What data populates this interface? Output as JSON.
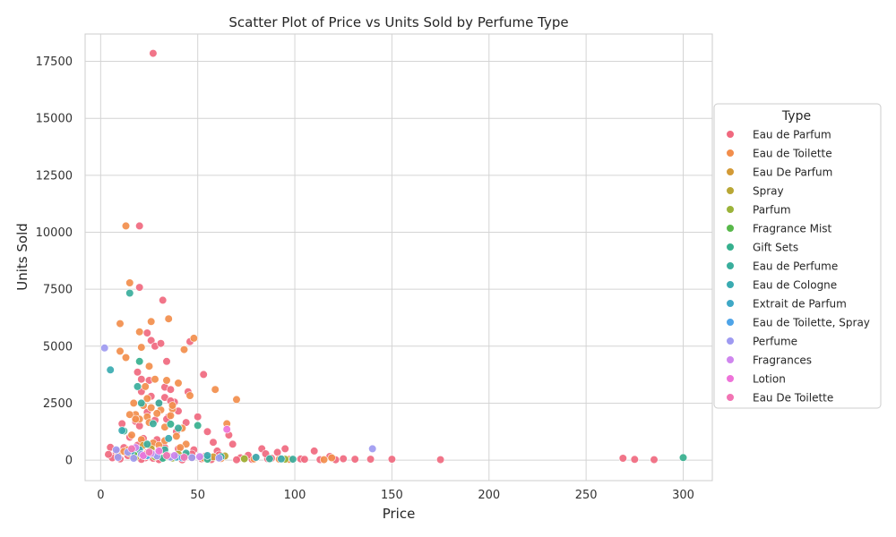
{
  "chart_data": {
    "type": "scatter",
    "title": "Scatter Plot of Price vs Units Sold by Perfume Type",
    "xlabel": "Price",
    "ylabel": "Units Sold",
    "xlim": [
      -8,
      315
    ],
    "ylim": [
      -900,
      18700
    ],
    "x_ticks": [
      0,
      50,
      100,
      150,
      200,
      250,
      300
    ],
    "y_ticks": [
      0,
      2500,
      5000,
      7500,
      10000,
      12500,
      15000,
      17500
    ],
    "grid": true,
    "legend_title": "Type",
    "legend_position": "right",
    "series": [
      {
        "name": "Eau de Parfum",
        "color": "#f0697f",
        "points": [
          [
            27,
            17850
          ],
          [
            20,
            10280
          ],
          [
            20,
            7580
          ],
          [
            32,
            7020
          ],
          [
            24,
            5580
          ],
          [
            26,
            5250
          ],
          [
            28,
            5000
          ],
          [
            31,
            5120
          ],
          [
            46,
            5200
          ],
          [
            34,
            4330
          ],
          [
            53,
            3760
          ],
          [
            19,
            3860
          ],
          [
            21,
            3550
          ],
          [
            25,
            3500
          ],
          [
            33,
            3200
          ],
          [
            36,
            3100
          ],
          [
            21,
            3010
          ],
          [
            38,
            2550
          ],
          [
            45,
            3000
          ],
          [
            26,
            2800
          ],
          [
            33,
            2750
          ],
          [
            36,
            2600
          ],
          [
            30,
            2480
          ],
          [
            40,
            2150
          ],
          [
            24,
            2100
          ],
          [
            35,
            1900
          ],
          [
            50,
            1900
          ],
          [
            18,
            1700
          ],
          [
            28,
            1750
          ],
          [
            34,
            1800
          ],
          [
            44,
            1650
          ],
          [
            11,
            1600
          ],
          [
            20,
            1500
          ],
          [
            55,
            1250
          ],
          [
            39,
            1250
          ],
          [
            15,
            1000
          ],
          [
            22,
            950
          ],
          [
            29,
            900
          ],
          [
            58,
            780
          ],
          [
            66,
            1100
          ],
          [
            68,
            700
          ],
          [
            12,
            550
          ],
          [
            19,
            650
          ],
          [
            26,
            600
          ],
          [
            33,
            550
          ],
          [
            40,
            500
          ],
          [
            48,
            450
          ],
          [
            60,
            400
          ],
          [
            83,
            500
          ],
          [
            95,
            500
          ],
          [
            110,
            400
          ],
          [
            5,
            560
          ],
          [
            8,
            300
          ],
          [
            14,
            200
          ],
          [
            17,
            150
          ],
          [
            23,
            100
          ],
          [
            27,
            80
          ],
          [
            31,
            50
          ],
          [
            37,
            120
          ],
          [
            43,
            90
          ],
          [
            52,
            60
          ],
          [
            63,
            140
          ],
          [
            72,
            100
          ],
          [
            80,
            120
          ],
          [
            88,
            80
          ],
          [
            93,
            60
          ],
          [
            103,
            50
          ],
          [
            118,
            160
          ],
          [
            125,
            60
          ],
          [
            131,
            40
          ],
          [
            139,
            40
          ],
          [
            150,
            40
          ],
          [
            175,
            20
          ],
          [
            269,
            80
          ],
          [
            275,
            30
          ],
          [
            285,
            20
          ],
          [
            6,
            100
          ],
          [
            10,
            50
          ],
          [
            21,
            30
          ],
          [
            30,
            20
          ],
          [
            42,
            10
          ],
          [
            57,
            25
          ],
          [
            70,
            15
          ],
          [
            78,
            30
          ],
          [
            86,
            60
          ],
          [
            98,
            20
          ],
          [
            105,
            35
          ],
          [
            113,
            20
          ],
          [
            121,
            15
          ],
          [
            4,
            250
          ],
          [
            9,
            380
          ],
          [
            16,
            420
          ],
          [
            24,
            330
          ],
          [
            34,
            240
          ],
          [
            47,
            270
          ],
          [
            54,
            180
          ],
          [
            61,
            230
          ],
          [
            76,
            210
          ],
          [
            85,
            280
          ],
          [
            91,
            340
          ]
        ]
      },
      {
        "name": "Eau de Toilette",
        "color": "#f28e4c",
        "points": [
          [
            13,
            10280
          ],
          [
            15,
            7780
          ],
          [
            10,
            5990
          ],
          [
            26,
            6080
          ],
          [
            35,
            6200
          ],
          [
            20,
            5630
          ],
          [
            48,
            5350
          ],
          [
            43,
            4850
          ],
          [
            10,
            4780
          ],
          [
            13,
            4500
          ],
          [
            21,
            4950
          ],
          [
            25,
            4120
          ],
          [
            28,
            3550
          ],
          [
            34,
            3500
          ],
          [
            40,
            3380
          ],
          [
            59,
            3100
          ],
          [
            70,
            2660
          ],
          [
            46,
            2830
          ],
          [
            23,
            3230
          ],
          [
            17,
            2500
          ],
          [
            22,
            2400
          ],
          [
            26,
            2300
          ],
          [
            37,
            2250
          ],
          [
            31,
            2200
          ],
          [
            18,
            2000
          ],
          [
            15,
            2000
          ],
          [
            24,
            1900
          ],
          [
            29,
            2050
          ],
          [
            36,
            1950
          ],
          [
            42,
            1400
          ],
          [
            20,
            1800
          ],
          [
            25,
            1650
          ],
          [
            33,
            1450
          ],
          [
            65,
            1600
          ],
          [
            16,
            1100
          ],
          [
            21,
            900
          ],
          [
            27,
            750
          ],
          [
            30,
            650
          ],
          [
            39,
            1050
          ],
          [
            44,
            700
          ],
          [
            14,
            450
          ],
          [
            19,
            300
          ],
          [
            23,
            250
          ],
          [
            28,
            200
          ],
          [
            35,
            180
          ],
          [
            41,
            150
          ],
          [
            47,
            100
          ],
          [
            53,
            90
          ],
          [
            62,
            70
          ],
          [
            74,
            60
          ],
          [
            79,
            50
          ],
          [
            92,
            40
          ],
          [
            97,
            30
          ],
          [
            115,
            20
          ],
          [
            119,
            100
          ],
          [
            37,
            2400
          ],
          [
            24,
            2700
          ],
          [
            18,
            1800
          ],
          [
            33,
            850
          ],
          [
            41,
            550
          ],
          [
            12,
            380
          ],
          [
            9,
            180
          ]
        ]
      },
      {
        "name": "Eau De Parfum",
        "color": "#d39a36",
        "points": [
          [
            22,
            650
          ],
          [
            31,
            420
          ],
          [
            44,
            220
          ],
          [
            58,
            140
          ],
          [
            15,
            300
          ]
        ]
      },
      {
        "name": "Spray",
        "color": "#b9a735",
        "points": [
          [
            26,
            500
          ],
          [
            40,
            260
          ],
          [
            64,
            180
          ],
          [
            18,
            120
          ]
        ]
      },
      {
        "name": "Parfum",
        "color": "#9bb33a",
        "points": [
          [
            19,
            350
          ],
          [
            28,
            150
          ],
          [
            37,
            90
          ],
          [
            74,
            60
          ],
          [
            95,
            40
          ]
        ]
      },
      {
        "name": "Fragrance Mist",
        "color": "#58b84a",
        "points": [
          [
            17,
            300
          ],
          [
            23,
            180
          ],
          [
            33,
            120
          ]
        ]
      },
      {
        "name": "Gift Sets",
        "color": "#36b08e",
        "points": [
          [
            20,
            4330
          ],
          [
            50,
            1520
          ],
          [
            12,
            1280
          ],
          [
            36,
            1580
          ],
          [
            300,
            110
          ],
          [
            32,
            80
          ],
          [
            55,
            40
          ]
        ]
      },
      {
        "name": "Eau de Perfume",
        "color": "#39ae9c",
        "points": [
          [
            15,
            7330
          ],
          [
            19,
            3230
          ],
          [
            21,
            2500
          ],
          [
            30,
            2500
          ],
          [
            27,
            1600
          ],
          [
            40,
            1400
          ],
          [
            24,
            700
          ],
          [
            33,
            450
          ],
          [
            44,
            300
          ],
          [
            62,
            150
          ],
          [
            87,
            60
          ],
          [
            99,
            40
          ]
        ]
      },
      {
        "name": "Eau de Cologne",
        "color": "#3aabb1",
        "points": [
          [
            5,
            3960
          ],
          [
            11,
            1300
          ],
          [
            35,
            950
          ],
          [
            20,
            450
          ],
          [
            55,
            200
          ],
          [
            80,
            120
          ],
          [
            93,
            50
          ]
        ]
      },
      {
        "name": "Extrait de Parfum",
        "color": "#3fa8c6",
        "points": [
          [
            16,
            400
          ],
          [
            28,
            250
          ],
          [
            39,
            130
          ]
        ]
      },
      {
        "name": "Eau de Toilette, Spray",
        "color": "#4ea4e8",
        "points": [
          [
            24,
            200
          ],
          [
            42,
            100
          ]
        ]
      },
      {
        "name": "Perfume",
        "color": "#9e9af1",
        "points": [
          [
            2,
            4920
          ],
          [
            140,
            500
          ],
          [
            8,
            450
          ],
          [
            14,
            350
          ],
          [
            21,
            250
          ],
          [
            29,
            180
          ],
          [
            36,
            130
          ],
          [
            47,
            110
          ],
          [
            61,
            90
          ],
          [
            9,
            120
          ],
          [
            17,
            80
          ]
        ]
      },
      {
        "name": "Fragrances",
        "color": "#cf86ee",
        "points": [
          [
            18,
            550
          ],
          [
            26,
            300
          ],
          [
            38,
            200
          ],
          [
            51,
            150
          ]
        ]
      },
      {
        "name": "Lotion",
        "color": "#ee73d9",
        "points": [
          [
            65,
            1350
          ],
          [
            30,
            400
          ],
          [
            22,
            200
          ]
        ]
      },
      {
        "name": "Eau De Toilette",
        "color": "#f274b3",
        "points": [
          [
            16,
            500
          ],
          [
            25,
            350
          ],
          [
            34,
            200
          ],
          [
            43,
            120
          ]
        ]
      }
    ]
  }
}
